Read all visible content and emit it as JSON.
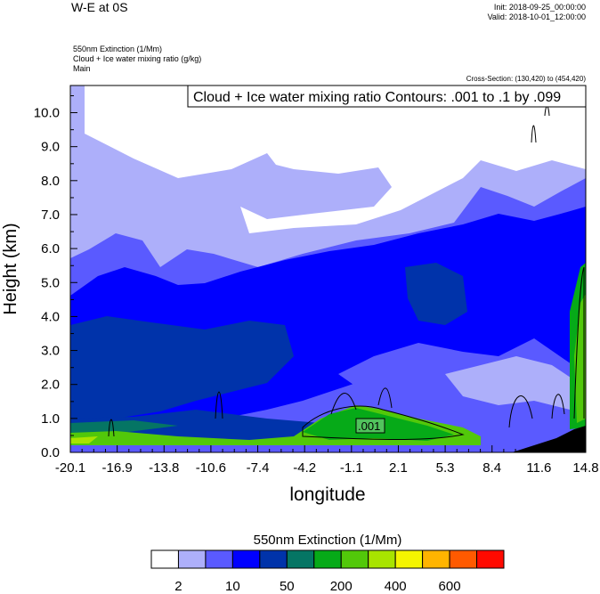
{
  "header": {
    "title": "W-E at 0S",
    "init": "Init: 2018-09-25_00:00:00",
    "valid": "Valid: 2018-10-01_12:00:00",
    "field1": "550nm Extinction   (1/Mm)",
    "field2": "Cloud + Ice water mixing ratio   (g/kg)",
    "field3": "Main",
    "cross_section": "Cross-Section: (130,420) to (454,420)"
  },
  "chart_data": {
    "type": "heatmap",
    "subtype": "filled contour cross-section with line contours",
    "contour_info": "Cloud + Ice water mixing ratio Contours: .001 to .1 by .099",
    "contour_label": ".001",
    "xlabel": "longitude",
    "ylabel": "Height (km)",
    "xlim": [
      -20.1,
      14.8
    ],
    "ylim": [
      0,
      10.8
    ],
    "x_ticks": [
      "-20.1",
      "-16.9",
      "-13.8",
      "-10.6",
      "-7.4",
      "-4.2",
      "-1.1",
      "2.1",
      "5.3",
      "8.4",
      "11.6",
      "14.8"
    ],
    "y_ticks": [
      "0.0",
      "1.0",
      "2.0",
      "3.0",
      "4.0",
      "5.0",
      "6.0",
      "7.0",
      "8.0",
      "9.0",
      "10.0"
    ],
    "colorbar": {
      "title": "550nm Extinction  (1/Mm)",
      "labels": [
        "2",
        "10",
        "50",
        "200",
        "400",
        "600"
      ],
      "colors": [
        "#ffffff",
        "#adaffa",
        "#5a5aff",
        "#0000ff",
        "#0033aa",
        "#057564",
        "#06aa18",
        "#52c80a",
        "#a8e400",
        "#f5f500",
        "#ffb400",
        "#ff5a00",
        "#ff0a00"
      ]
    }
  }
}
